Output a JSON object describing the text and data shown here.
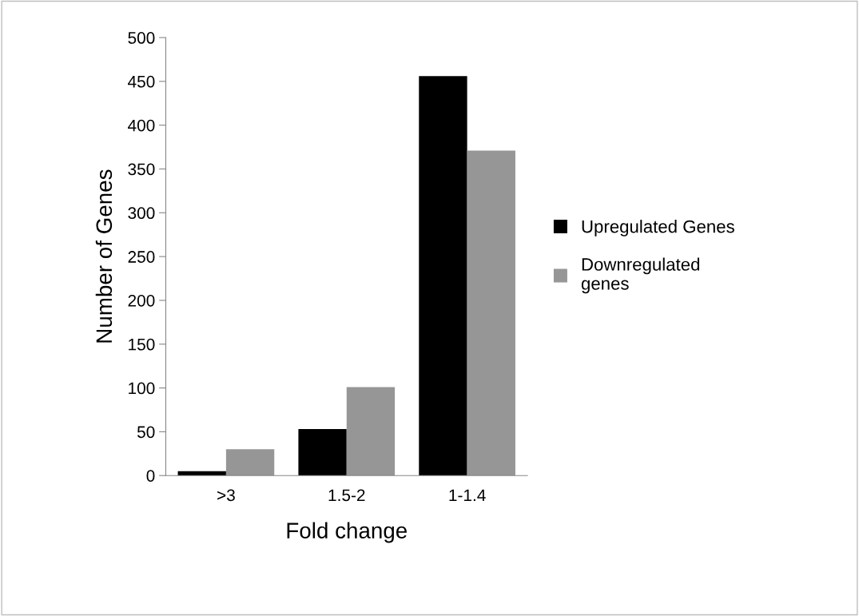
{
  "chart_data": {
    "type": "bar",
    "xlabel": "Fold change",
    "ylabel": "Number of Genes",
    "categories": [
      ">3",
      "1.5-2",
      "1-1.4"
    ],
    "series": [
      {
        "name": "Upregulated Genes",
        "color": "#000000",
        "values": [
          5,
          53,
          456
        ]
      },
      {
        "name": "Downregulated\ngenes",
        "color": "#969696",
        "values": [
          30,
          101,
          371
        ]
      }
    ],
    "ylim": [
      0,
      500
    ],
    "yticks": [
      0,
      50,
      100,
      150,
      200,
      250,
      300,
      350,
      400,
      450,
      500
    ],
    "grid": false,
    "legend": "right"
  }
}
